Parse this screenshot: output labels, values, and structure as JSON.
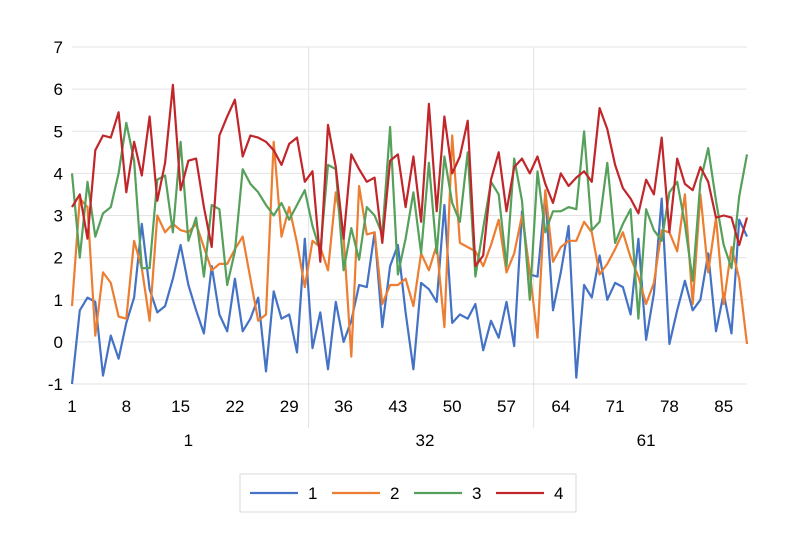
{
  "chart_data": {
    "type": "line",
    "title": "",
    "xlabel": "",
    "ylabel": "",
    "ylim": [
      -1,
      7
    ],
    "yticks": [
      -1,
      0,
      1,
      2,
      3,
      4,
      5,
      6,
      7
    ],
    "grid": true,
    "legend_position": "bottom",
    "x": [
      1,
      2,
      3,
      4,
      5,
      6,
      7,
      8,
      9,
      10,
      11,
      12,
      13,
      14,
      15,
      16,
      17,
      18,
      19,
      20,
      21,
      22,
      23,
      24,
      25,
      26,
      27,
      28,
      29,
      30,
      31,
      32,
      33,
      34,
      35,
      36,
      37,
      38,
      39,
      40,
      41,
      42,
      43,
      44,
      45,
      46,
      47,
      48,
      49,
      50,
      51,
      52,
      53,
      54,
      55,
      56,
      57,
      58,
      59,
      60,
      61,
      62,
      63,
      64,
      65,
      66,
      67,
      68,
      69,
      70,
      71,
      72,
      73,
      74,
      75,
      76,
      77,
      78,
      79,
      80,
      81,
      82,
      83,
      84,
      85,
      86,
      87,
      88
    ],
    "x_tick_labels": [
      "1",
      "8",
      "15",
      "22",
      "29",
      "36",
      "43",
      "50",
      "57",
      "64",
      "71",
      "78",
      "85"
    ],
    "x_tick_positions": [
      1,
      8,
      15,
      22,
      29,
      36,
      43,
      50,
      57,
      64,
      71,
      78,
      85
    ],
    "x_group_labels": [
      "1",
      "32",
      "61"
    ],
    "x_group_positions": [
      16,
      46.5,
      75
    ],
    "x_group_dividers": [
      31.5,
      60.5
    ],
    "series": [
      {
        "name": "1",
        "color": "#4472C4",
        "values": [
          -1.0,
          0.75,
          1.05,
          0.95,
          -0.8,
          0.15,
          -0.4,
          0.45,
          1.05,
          2.8,
          1.25,
          0.7,
          0.85,
          1.5,
          2.3,
          1.35,
          0.75,
          0.2,
          1.8,
          0.65,
          0.25,
          1.5,
          0.25,
          0.55,
          1.05,
          -0.7,
          1.2,
          0.55,
          0.65,
          -0.25,
          2.45,
          -0.15,
          0.7,
          -0.65,
          0.95,
          0.0,
          0.5,
          1.35,
          1.3,
          2.6,
          0.35,
          1.8,
          2.3,
          0.7,
          -0.65,
          1.4,
          1.25,
          0.95,
          3.25,
          0.45,
          0.65,
          0.55,
          0.9,
          -0.2,
          0.5,
          0.1,
          0.95,
          -0.1,
          3.1,
          1.6,
          1.55,
          3.5,
          0.75,
          1.65,
          2.75,
          -0.85,
          1.35,
          1.05,
          2.05,
          1.0,
          1.4,
          1.3,
          0.65,
          2.45,
          0.05,
          1.15,
          3.4,
          -0.05,
          0.75,
          1.45,
          0.75,
          1.0,
          2.1,
          0.25,
          1.15,
          0.2,
          2.9,
          2.5
        ]
      },
      {
        "name": "2",
        "color": "#ED7D31",
        "values": [
          0.85,
          3.4,
          3.2,
          0.15,
          1.65,
          1.4,
          0.6,
          0.55,
          2.4,
          1.75,
          0.5,
          3.0,
          2.6,
          2.8,
          2.65,
          2.6,
          2.8,
          2.25,
          1.7,
          1.85,
          1.85,
          2.2,
          2.5,
          1.5,
          0.5,
          0.65,
          4.75,
          2.5,
          3.2,
          2.35,
          1.3,
          2.4,
          2.25,
          1.7,
          3.55,
          2.5,
          -0.35,
          3.7,
          2.55,
          2.6,
          0.9,
          1.35,
          1.35,
          1.5,
          0.85,
          2.1,
          1.7,
          2.3,
          0.35,
          4.9,
          2.35,
          2.25,
          2.15,
          1.8,
          2.3,
          2.9,
          1.65,
          2.1,
          3.0,
          1.65,
          0.1,
          3.6,
          1.9,
          2.25,
          2.4,
          2.4,
          2.85,
          2.6,
          1.6,
          1.85,
          2.2,
          2.6,
          2.0,
          1.55,
          0.9,
          1.4,
          2.65,
          2.6,
          2.15,
          3.5,
          0.9,
          3.5,
          1.65,
          2.95,
          0.9,
          2.25,
          1.5,
          -0.05
        ]
      },
      {
        "name": "3",
        "color": "#55A05A",
        "values": [
          4.0,
          2.0,
          3.8,
          2.5,
          3.05,
          3.2,
          4.0,
          5.2,
          4.3,
          1.75,
          1.75,
          3.85,
          3.95,
          2.6,
          4.75,
          2.4,
          2.95,
          1.55,
          3.25,
          3.15,
          1.35,
          2.15,
          4.1,
          3.75,
          3.55,
          3.25,
          3.0,
          3.3,
          2.9,
          3.25,
          3.6,
          2.75,
          2.15,
          4.2,
          4.1,
          1.7,
          2.7,
          1.95,
          3.2,
          3.0,
          2.55,
          5.1,
          1.6,
          2.45,
          3.55,
          2.1,
          4.25,
          2.1,
          4.4,
          3.3,
          2.85,
          4.5,
          1.55,
          2.7,
          3.8,
          3.5,
          1.8,
          4.35,
          3.35,
          1.0,
          4.05,
          2.6,
          3.1,
          3.1,
          3.2,
          3.15,
          5.0,
          2.65,
          2.85,
          4.25,
          2.35,
          2.8,
          3.15,
          0.55,
          3.15,
          2.65,
          2.4,
          3.55,
          3.8,
          2.8,
          1.45,
          3.8,
          4.6,
          3.35,
          2.3,
          1.75,
          3.45,
          4.45
        ]
      },
      {
        "name": "4",
        "color": "#C0262A",
        "values": [
          3.2,
          3.5,
          2.45,
          4.55,
          4.9,
          4.85,
          5.45,
          3.55,
          4.75,
          3.95,
          5.35,
          3.35,
          4.25,
          6.1,
          3.6,
          4.3,
          4.35,
          3.2,
          2.25,
          4.9,
          5.35,
          5.75,
          4.4,
          4.9,
          4.85,
          4.75,
          4.55,
          4.2,
          4.7,
          4.85,
          3.8,
          4.05,
          1.9,
          5.15,
          4.15,
          2.45,
          4.45,
          4.1,
          3.8,
          3.9,
          2.35,
          4.3,
          4.45,
          3.2,
          4.4,
          2.85,
          5.65,
          3.1,
          5.35,
          4.0,
          4.4,
          5.25,
          1.8,
          2.05,
          3.85,
          4.5,
          3.1,
          4.15,
          4.35,
          4.0,
          4.4,
          3.75,
          3.3,
          4.0,
          3.7,
          3.9,
          4.05,
          3.8,
          5.55,
          5.05,
          4.2,
          3.65,
          3.4,
          3.05,
          3.85,
          3.5,
          4.85,
          2.6,
          4.35,
          3.75,
          3.6,
          4.15,
          3.8,
          2.95,
          3.0,
          2.95,
          2.3,
          2.95
        ]
      }
    ]
  }
}
